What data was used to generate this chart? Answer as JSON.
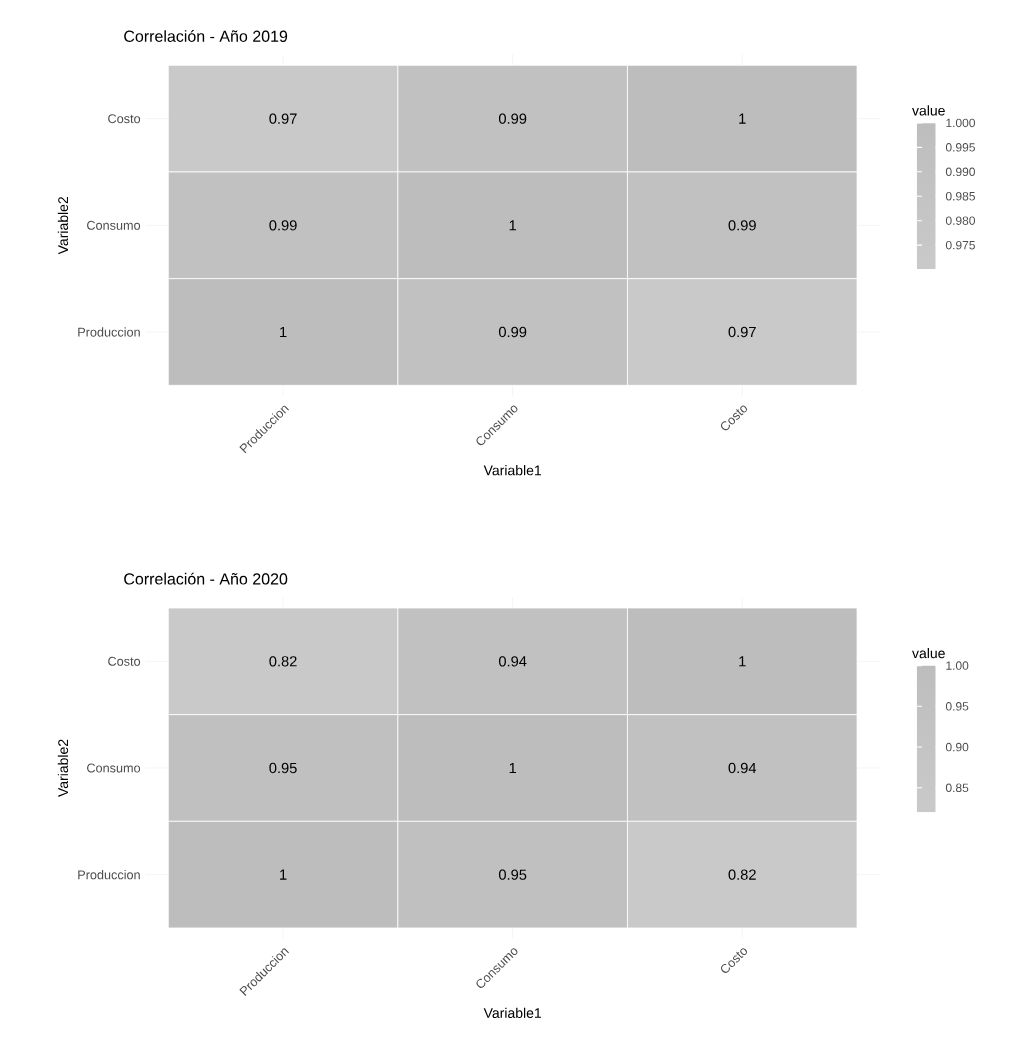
{
  "chart_data": [
    {
      "type": "heatmap",
      "title": "Correlación - Año 2019",
      "xlabel": "Variable1",
      "ylabel": "Variable2",
      "clabel": "value",
      "categories": [
        "Produccion",
        "Consumo",
        "Costo"
      ],
      "y_categories": [
        "Costo",
        "Consumo",
        "Produccion"
      ],
      "cells": [
        [
          0.97,
          0.99,
          1
        ],
        [
          0.99,
          1,
          0.99
        ],
        [
          1,
          0.99,
          0.97
        ]
      ],
      "clim": [
        0.97,
        1
      ],
      "cticks": [
        {
          "value": 0.975,
          "label": "0.975"
        },
        {
          "value": 0.98,
          "label": "0.980"
        },
        {
          "value": 0.985,
          "label": "0.985"
        },
        {
          "value": 0.99,
          "label": "0.990"
        },
        {
          "value": 0.995,
          "label": "0.995"
        },
        {
          "value": 1,
          "label": "1.000"
        }
      ],
      "data_labels": true,
      "grid": true
    },
    {
      "type": "heatmap",
      "title": "Correlación - Año 2020",
      "xlabel": "Variable1",
      "ylabel": "Variable2",
      "clabel": "value",
      "categories": [
        "Produccion",
        "Consumo",
        "Costo"
      ],
      "y_categories": [
        "Costo",
        "Consumo",
        "Produccion"
      ],
      "cells": [
        [
          0.82,
          0.94,
          1
        ],
        [
          0.95,
          1,
          0.94
        ],
        [
          1,
          0.95,
          0.82
        ]
      ],
      "clim": [
        0.82,
        1
      ],
      "cticks": [
        {
          "value": 0.85,
          "label": "0.85"
        },
        {
          "value": 0.9,
          "label": "0.90"
        },
        {
          "value": 0.95,
          "label": "0.95"
        },
        {
          "value": 1,
          "label": "1.00"
        }
      ],
      "data_labels": true,
      "grid": true
    }
  ]
}
